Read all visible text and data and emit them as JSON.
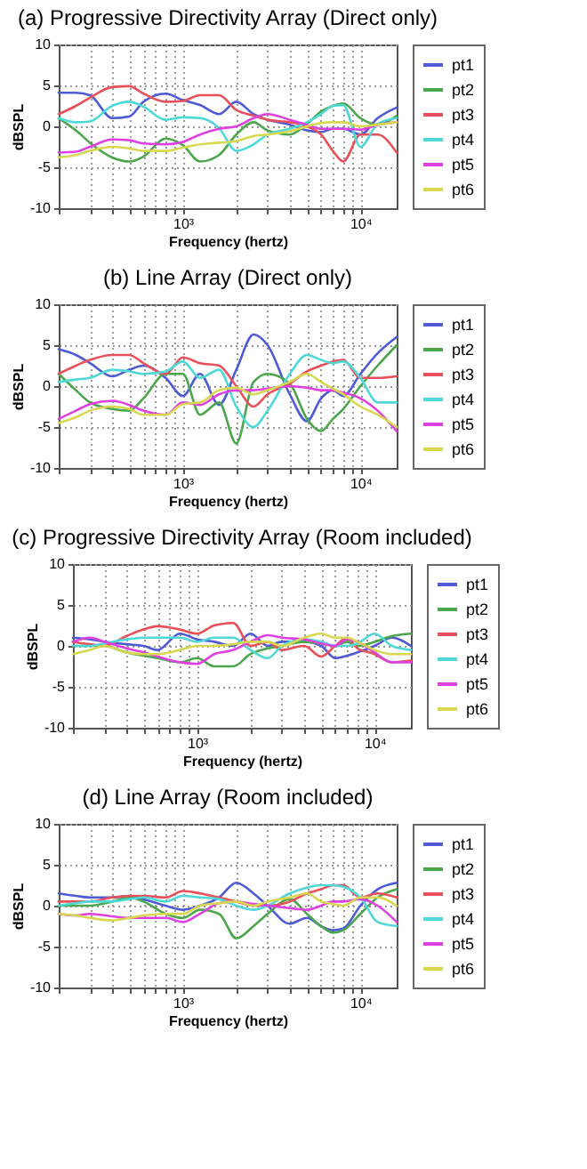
{
  "chart_data": [
    {
      "type": "line",
      "title": "(a) Progressive Directivity Array (Direct only)",
      "xlabel": "Frequency (hertz)",
      "ylabel": "dBSPL",
      "log": "x",
      "grid": true,
      "legend": "right",
      "xlim": [
        200,
        16000
      ],
      "ylim": [
        -10,
        10
      ],
      "yticks": [
        -10,
        -5,
        0,
        5,
        10
      ],
      "xticks": [
        {
          "value": 200,
          "label": null
        },
        {
          "value": 300,
          "label": null
        },
        {
          "value": 400,
          "label": null
        },
        {
          "value": 500,
          "label": null
        },
        {
          "value": 600,
          "label": null
        },
        {
          "value": 700,
          "label": null
        },
        {
          "value": 800,
          "label": null
        },
        {
          "value": 900,
          "label": null
        },
        {
          "value": 1000,
          "label": "10³"
        },
        {
          "value": 2000,
          "label": null
        },
        {
          "value": 3000,
          "label": null
        },
        {
          "value": 4000,
          "label": null
        },
        {
          "value": 5000,
          "label": null
        },
        {
          "value": 6000,
          "label": null
        },
        {
          "value": 7000,
          "label": null
        },
        {
          "value": 8000,
          "label": null
        },
        {
          "value": 9000,
          "label": null
        },
        {
          "value": 10000,
          "label": "10⁴"
        }
      ],
      "x": [
        200,
        250,
        300,
        400,
        500,
        600,
        800,
        1000,
        1250,
        1600,
        2000,
        2500,
        3000,
        4000,
        5000,
        6000,
        7000,
        8000,
        10000,
        12500,
        16000
      ],
      "series": [
        {
          "name": "pt1",
          "color": "#4f5bd5",
          "values": [
            4.1,
            4.1,
            3.8,
            1.0,
            1.2,
            3.0,
            4.0,
            3.2,
            2.6,
            1.5,
            3.0,
            1.5,
            0.8,
            0.2,
            -0.5,
            -0.7,
            -0.3,
            -0.3,
            -1.0,
            1.0,
            2.3
          ]
        },
        {
          "name": "pt2",
          "color": "#4ca64c",
          "values": [
            1.0,
            -0.5,
            -2.0,
            -3.8,
            -4.3,
            -3.7,
            -1.5,
            -2.3,
            -4.3,
            -3.5,
            -1.0,
            0.5,
            -0.5,
            -1.0,
            0.3,
            1.8,
            2.5,
            2.8,
            1.0,
            0.2,
            1.3
          ]
        },
        {
          "name": "pt3",
          "color": "#e8505a",
          "values": [
            1.5,
            2.5,
            3.5,
            4.8,
            4.9,
            4.0,
            3.0,
            3.1,
            3.8,
            3.8,
            2.0,
            1.3,
            0.8,
            0.5,
            0,
            -1.0,
            -3.0,
            -4.3,
            -1.0,
            -1.0,
            -3.2
          ]
        },
        {
          "name": "pt4",
          "color": "#4fd8d8",
          "values": [
            1.0,
            0.5,
            0.6,
            2.5,
            3.0,
            2.4,
            0.8,
            1.1,
            1.0,
            -0.2,
            -3.0,
            -2.2,
            -1.0,
            -0.3,
            0.5,
            1.5,
            2.5,
            2.6,
            -2.5,
            0.3,
            1.0
          ]
        },
        {
          "name": "pt5",
          "color": "#e040e0",
          "values": [
            -3.2,
            -3.1,
            -2.5,
            -1.6,
            -1.7,
            -2.1,
            -2.2,
            -1.9,
            -1.0,
            -0.3,
            0,
            1.0,
            1.5,
            0.8,
            0.2,
            -0.3,
            -0.3,
            -0.3,
            -0.4,
            0.2,
            0.5
          ]
        },
        {
          "name": "pt6",
          "color": "#d8d850",
          "values": [
            -3.8,
            -3.5,
            -3.0,
            -2.5,
            -2.7,
            -3.0,
            -3.0,
            -2.6,
            -2.2,
            -2.0,
            -1.8,
            -1.2,
            -1.0,
            -0.6,
            0,
            0.4,
            0.5,
            0.5,
            0,
            0.2,
            0.5
          ]
        }
      ]
    },
    {
      "type": "line",
      "title": "(b) Line Array (Direct only)",
      "xlabel": "Frequency (hertz)",
      "ylabel": "dBSPL",
      "log": "x",
      "grid": true,
      "legend": "right",
      "xlim": [
        200,
        16000
      ],
      "ylim": [
        -10,
        10
      ],
      "yticks": [
        -10,
        -5,
        0,
        5,
        10
      ],
      "xticks": [
        {
          "value": 200,
          "label": null
        },
        {
          "value": 300,
          "label": null
        },
        {
          "value": 400,
          "label": null
        },
        {
          "value": 500,
          "label": null
        },
        {
          "value": 600,
          "label": null
        },
        {
          "value": 700,
          "label": null
        },
        {
          "value": 800,
          "label": null
        },
        {
          "value": 900,
          "label": null
        },
        {
          "value": 1000,
          "label": "10³"
        },
        {
          "value": 2000,
          "label": null
        },
        {
          "value": 3000,
          "label": null
        },
        {
          "value": 4000,
          "label": null
        },
        {
          "value": 5000,
          "label": null
        },
        {
          "value": 6000,
          "label": null
        },
        {
          "value": 7000,
          "label": null
        },
        {
          "value": 8000,
          "label": null
        },
        {
          "value": 9000,
          "label": null
        },
        {
          "value": 10000,
          "label": "10⁴"
        }
      ],
      "x": [
        200,
        250,
        300,
        400,
        500,
        600,
        800,
        1000,
        1250,
        1600,
        2000,
        2500,
        3000,
        4000,
        5000,
        6000,
        7000,
        8000,
        10000,
        12500,
        16000
      ],
      "series": [
        {
          "name": "pt1",
          "color": "#4f5bd5",
          "values": [
            4.5,
            3.8,
            2.8,
            1.2,
            2.0,
            2.5,
            1.0,
            -1.2,
            1.5,
            -2.3,
            2.0,
            6.3,
            5.0,
            -1.0,
            -4.3,
            -1.5,
            -0.5,
            -1.2,
            1.5,
            4.0,
            6.0
          ]
        },
        {
          "name": "pt2",
          "color": "#4ca64c",
          "values": [
            1.5,
            -0.5,
            -2.0,
            -2.8,
            -3.0,
            -1.5,
            1.5,
            1.5,
            -3.5,
            -2.0,
            -7.0,
            0.5,
            1.5,
            0.3,
            -4.0,
            -5.5,
            -4.0,
            -2.8,
            0,
            2.5,
            5.0
          ]
        },
        {
          "name": "pt3",
          "color": "#e8505a",
          "values": [
            1.5,
            2.5,
            3.2,
            3.8,
            3.8,
            2.8,
            1.5,
            3.5,
            2.8,
            2.5,
            0,
            -2.5,
            -1.0,
            0.3,
            1.8,
            2.5,
            3.0,
            3.2,
            1.0,
            1.0,
            1.2
          ]
        },
        {
          "name": "pt4",
          "color": "#4fd8d8",
          "values": [
            0.5,
            0.8,
            1.0,
            2.0,
            1.8,
            1.5,
            1.8,
            3.0,
            1.0,
            2.0,
            -2.5,
            -5.0,
            -3.0,
            1.5,
            3.8,
            3.2,
            2.8,
            3.0,
            1.0,
            -2.0,
            -2.0
          ]
        },
        {
          "name": "pt5",
          "color": "#e040e0",
          "values": [
            -4.0,
            -3.0,
            -2.2,
            -1.8,
            -2.3,
            -3.0,
            -3.5,
            -2.0,
            -2.3,
            -1.0,
            -0.5,
            -0.5,
            -0.3,
            0,
            -0.2,
            -0.5,
            -0.5,
            -0.8,
            -1.5,
            -3.0,
            -5.5
          ]
        },
        {
          "name": "pt6",
          "color": "#d8d850",
          "values": [
            -4.5,
            -3.8,
            -3.0,
            -2.5,
            -2.8,
            -3.5,
            -3.5,
            -2.2,
            -2.0,
            -0.5,
            -0.2,
            -1.0,
            -0.5,
            0.5,
            1.5,
            0.5,
            -0.3,
            -1.0,
            -2.5,
            -3.5,
            -5.0
          ]
        }
      ]
    },
    {
      "type": "line",
      "title": "(c) Progressive Directivity Array (Room included)",
      "xlabel": "Frequency (hertz)",
      "ylabel": "dBSPL",
      "log": "x",
      "grid": true,
      "legend": "right",
      "xlim": [
        200,
        16000
      ],
      "ylim": [
        -10,
        10
      ],
      "yticks": [
        -10,
        -5,
        0,
        5,
        10
      ],
      "xticks": [
        {
          "value": 200,
          "label": null
        },
        {
          "value": 300,
          "label": null
        },
        {
          "value": 400,
          "label": null
        },
        {
          "value": 500,
          "label": null
        },
        {
          "value": 600,
          "label": null
        },
        {
          "value": 700,
          "label": null
        },
        {
          "value": 800,
          "label": null
        },
        {
          "value": 900,
          "label": null
        },
        {
          "value": 1000,
          "label": "10³"
        },
        {
          "value": 2000,
          "label": null
        },
        {
          "value": 3000,
          "label": null
        },
        {
          "value": 4000,
          "label": null
        },
        {
          "value": 5000,
          "label": null
        },
        {
          "value": 6000,
          "label": null
        },
        {
          "value": 7000,
          "label": null
        },
        {
          "value": 8000,
          "label": null
        },
        {
          "value": 9000,
          "label": null
        },
        {
          "value": 10000,
          "label": "10⁴"
        }
      ],
      "x": [
        200,
        250,
        300,
        400,
        500,
        600,
        800,
        1000,
        1250,
        1600,
        2000,
        2500,
        3000,
        4000,
        5000,
        6000,
        7000,
        8000,
        10000,
        12500,
        16000
      ],
      "series": [
        {
          "name": "pt1",
          "color": "#4f5bd5",
          "values": [
            1.0,
            0.8,
            0.5,
            0.2,
            0,
            -0.5,
            1.5,
            0.8,
            0.5,
            0,
            1.5,
            0,
            0.5,
            0.5,
            0,
            -1.5,
            -1.2,
            -0.8,
            0,
            1.0,
            0
          ]
        },
        {
          "name": "pt2",
          "color": "#4ca64c",
          "values": [
            0,
            0,
            0,
            -0.8,
            -1.2,
            -1.5,
            -2.0,
            -1.5,
            -2.5,
            -2.5,
            -1.0,
            -0.3,
            0,
            0.5,
            0.3,
            0,
            0.5,
            0,
            0.5,
            1.2,
            1.5
          ]
        },
        {
          "name": "pt3",
          "color": "#e8505a",
          "values": [
            0.5,
            0.2,
            0,
            1.2,
            2.0,
            2.4,
            2.0,
            1.5,
            2.5,
            2.8,
            0,
            0.5,
            -0.5,
            0,
            -1.3,
            0,
            1.0,
            -0.3,
            -1.0,
            -2.0,
            -1.8
          ]
        },
        {
          "name": "pt4",
          "color": "#4fd8d8",
          "values": [
            0,
            0,
            0.3,
            0.8,
            1.0,
            1.0,
            1.0,
            0.5,
            1.0,
            1.0,
            -0.5,
            -1.5,
            0,
            0.8,
            0.5,
            0,
            0,
            0.3,
            1.5,
            0,
            -0.5
          ]
        },
        {
          "name": "pt5",
          "color": "#e040e0",
          "values": [
            0.5,
            1.0,
            0.5,
            -0.3,
            -0.8,
            -1.3,
            -2.0,
            -2.2,
            -1.0,
            -0.5,
            0.5,
            1.3,
            1.0,
            0.8,
            0.3,
            0,
            0.8,
            0.5,
            -0.8,
            -2.0,
            -2.0
          ]
        },
        {
          "name": "pt6",
          "color": "#d8d850",
          "values": [
            -1.0,
            -0.5,
            0,
            -0.8,
            -1.0,
            -1.0,
            -0.5,
            0,
            0,
            0.2,
            0.5,
            0.5,
            0,
            1.0,
            1.5,
            1.0,
            1.0,
            0.5,
            -0.5,
            -1.0,
            -1.0
          ]
        }
      ]
    },
    {
      "type": "line",
      "title": "(d) Line Array (Room included)",
      "xlabel": "Frequency (hertz)",
      "ylabel": "dBSPL",
      "log": "x",
      "grid": true,
      "legend": "right",
      "xlim": [
        200,
        16000
      ],
      "ylim": [
        -10,
        10
      ],
      "yticks": [
        -10,
        -5,
        0,
        5,
        10
      ],
      "xticks": [
        {
          "value": 200,
          "label": null
        },
        {
          "value": 300,
          "label": null
        },
        {
          "value": 400,
          "label": null
        },
        {
          "value": 500,
          "label": null
        },
        {
          "value": 600,
          "label": null
        },
        {
          "value": 700,
          "label": null
        },
        {
          "value": 800,
          "label": null
        },
        {
          "value": 900,
          "label": null
        },
        {
          "value": 1000,
          "label": "10³"
        },
        {
          "value": 2000,
          "label": null
        },
        {
          "value": 3000,
          "label": null
        },
        {
          "value": 4000,
          "label": null
        },
        {
          "value": 5000,
          "label": null
        },
        {
          "value": 6000,
          "label": null
        },
        {
          "value": 7000,
          "label": null
        },
        {
          "value": 8000,
          "label": null
        },
        {
          "value": 9000,
          "label": null
        },
        {
          "value": 10000,
          "label": "10⁴"
        }
      ],
      "x": [
        200,
        250,
        300,
        400,
        500,
        600,
        800,
        1000,
        1250,
        1600,
        2000,
        2500,
        3000,
        4000,
        5000,
        6000,
        7000,
        8000,
        10000,
        12500,
        16000
      ],
      "series": [
        {
          "name": "pt1",
          "color": "#4f5bd5",
          "values": [
            1.5,
            1.2,
            1.0,
            1.0,
            1.2,
            0.8,
            0,
            -0.5,
            0,
            1.0,
            2.8,
            1.5,
            0,
            -2.2,
            -1.5,
            -2.5,
            -3.0,
            -2.8,
            0,
            2.0,
            2.8
          ]
        },
        {
          "name": "pt2",
          "color": "#4ca64c",
          "values": [
            0,
            0,
            0,
            0.5,
            1.0,
            0.5,
            -1.0,
            -1.5,
            -0.5,
            -1.0,
            -4.0,
            -2.5,
            -1.0,
            0.8,
            -1.0,
            -2.5,
            -3.3,
            -3.0,
            -1.0,
            1.0,
            2.0
          ]
        },
        {
          "name": "pt3",
          "color": "#e8505a",
          "values": [
            0.5,
            0.5,
            0.5,
            1.0,
            1.2,
            1.2,
            1.0,
            1.8,
            1.5,
            1.0,
            0.5,
            0,
            0,
            0.5,
            1.5,
            2.0,
            2.5,
            2.5,
            1.0,
            1.5,
            1.0
          ]
        },
        {
          "name": "pt4",
          "color": "#4fd8d8",
          "values": [
            0,
            0.3,
            0.5,
            0.5,
            0.8,
            1.0,
            0.5,
            1.2,
            1.0,
            0.8,
            0,
            -0.5,
            0,
            1.5,
            2.2,
            2.5,
            2.5,
            2.3,
            1.0,
            -2.0,
            -2.5
          ]
        },
        {
          "name": "pt5",
          "color": "#e040e0",
          "values": [
            -1.0,
            -1.2,
            -1.0,
            -1.3,
            -1.5,
            -1.5,
            -1.5,
            -2.0,
            -1.0,
            0.3,
            0.5,
            0.2,
            0,
            -0.3,
            -0.5,
            0,
            0.5,
            0.5,
            0.8,
            0,
            -2.0
          ]
        },
        {
          "name": "pt6",
          "color": "#d8d850",
          "values": [
            -1.0,
            -1.2,
            -1.5,
            -1.8,
            -1.5,
            -1.2,
            -1.0,
            -1.0,
            0,
            0.3,
            0.5,
            0,
            0.5,
            1.0,
            1.5,
            0.5,
            0.2,
            0,
            1.0,
            1.0,
            0
          ]
        }
      ]
    }
  ]
}
